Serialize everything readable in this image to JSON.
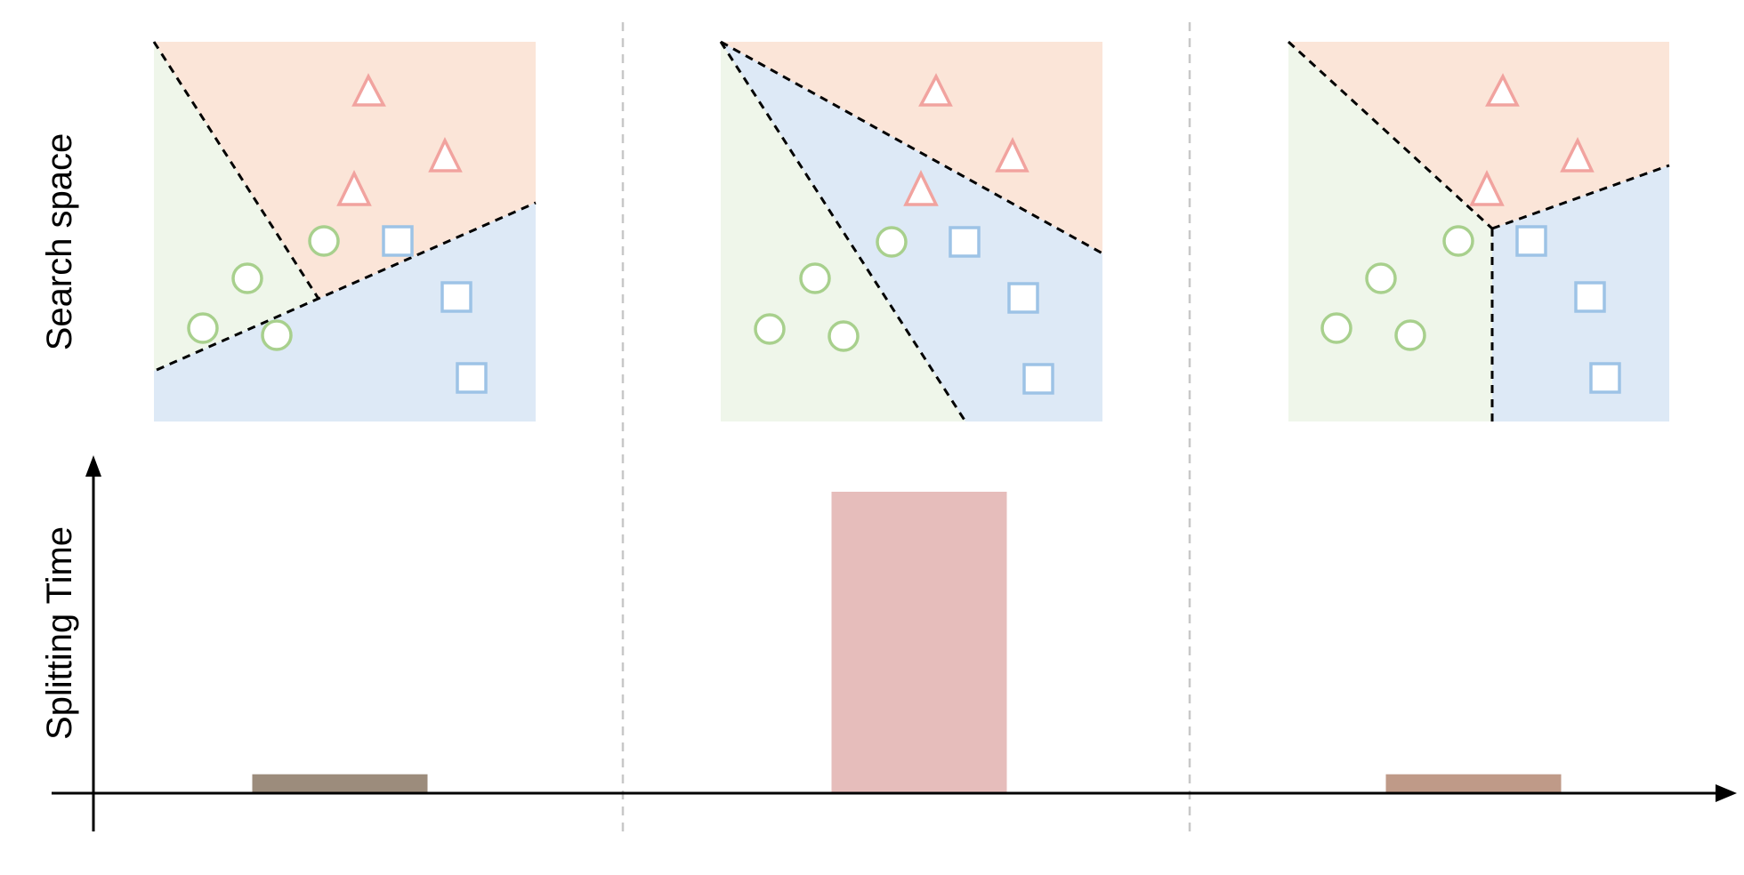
{
  "labels": {
    "top_row": "Search space",
    "bottom_row": "Splitting Time"
  },
  "colors": {
    "region_red": "#fbe5d8",
    "region_green": "#eff6ea",
    "region_blue": "#dde9f6",
    "triangle": "#f1a39f",
    "circle": "#a8d08d",
    "square": "#9dc3e6",
    "boundary": "#000000",
    "divider": "#c8c8c8",
    "bar_1": "#9c8c7c",
    "bar_2": "#e6bdbb",
    "bar_3": "#bf9a88"
  },
  "panels": [
    {
      "id": "panel-1",
      "splitting_time": 0.06
    },
    {
      "id": "panel-2",
      "splitting_time": 1.0
    },
    {
      "id": "panel-3",
      "splitting_time": 0.06
    }
  ]
}
